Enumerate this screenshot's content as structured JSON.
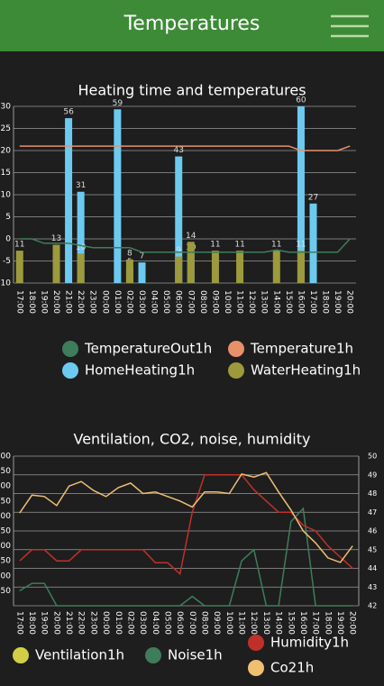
{
  "header": {
    "title": "Temperatures"
  },
  "chart_data": [
    {
      "type": "bar",
      "title": "Heating time and temperatures",
      "categories": [
        "17:00",
        "18:00",
        "19:00",
        "20:00",
        "21:00",
        "22:00",
        "23:00",
        "00:00",
        "01:00",
        "02:00",
        "03:00",
        "04:00",
        "05:00",
        "06:00",
        "07:00",
        "08:00",
        "09:00",
        "10:00",
        "11:00",
        "12:00",
        "13:00",
        "14:00",
        "15:00",
        "16:00",
        "17:00",
        "18:00",
        "19:00",
        "20:00"
      ],
      "ylim": [
        -10,
        30
      ],
      "yticks": [
        -10,
        -5,
        0,
        5,
        10,
        15,
        20,
        25,
        30
      ],
      "y2lim": [
        0,
        60
      ],
      "grid": "y",
      "data_labels": true,
      "series": [
        {
          "name": "TemperatureOut1h",
          "color": "#3e7d5c",
          "type": "line",
          "values": [
            0,
            0,
            -1,
            -1,
            -1,
            -1.5,
            -2,
            -2,
            -2,
            -2,
            -3,
            -3,
            -3,
            -3,
            -3,
            -3,
            -3,
            -3,
            -3,
            -3,
            -3,
            -2.5,
            -3,
            -3,
            -3,
            -3,
            -3,
            0
          ]
        },
        {
          "name": "Temperature1h",
          "color": "#e8906a",
          "type": "line",
          "values": [
            21,
            21,
            21,
            21,
            21,
            21,
            21,
            21,
            21,
            21,
            21,
            21,
            21,
            21,
            21,
            21,
            21,
            21,
            21,
            21,
            21,
            21,
            21,
            20,
            20,
            20,
            20,
            21
          ]
        },
        {
          "name": "HomeHeating1h",
          "color": "#6ccaf0",
          "type": "bar",
          "axis": "y2",
          "values": [
            null,
            null,
            null,
            null,
            56,
            31,
            null,
            null,
            59,
            5,
            7,
            null,
            null,
            43,
            10,
            null,
            null,
            null,
            null,
            null,
            null,
            null,
            null,
            60,
            27,
            null,
            null,
            null
          ]
        },
        {
          "name": "WaterHeating1h",
          "color": "#9c9a3c",
          "type": "bar",
          "axis": "y2",
          "values": [
            11,
            null,
            null,
            13,
            null,
            10,
            null,
            null,
            null,
            8,
            null,
            null,
            null,
            9,
            14,
            null,
            11,
            null,
            11,
            null,
            null,
            11,
            null,
            11,
            null,
            null,
            null,
            null
          ]
        }
      ]
    },
    {
      "type": "line",
      "title": "Ventilation, CO2, noise, humidity",
      "categories": [
        "17:00",
        "18:00",
        "19:00",
        "20:00",
        "21:00",
        "22:00",
        "23:00",
        "00:00",
        "01:00",
        "02:00",
        "03:00",
        "04:00",
        "05:00",
        "06:00",
        "07:00",
        "08:00",
        "09:00",
        "10:00",
        "11:00",
        "12:00",
        "13:00",
        "14:00",
        "15:00",
        "16:00",
        "17:00",
        "18:00",
        "19:00",
        "20:00"
      ],
      "ylim": [
        400,
        900
      ],
      "yticks": [
        450,
        500,
        550,
        600,
        650,
        700,
        750,
        800,
        850,
        900
      ],
      "y2lim": [
        42,
        50
      ],
      "y2ticks": [
        42,
        43,
        44,
        45,
        46,
        47,
        48,
        49,
        50
      ],
      "grid": "y2",
      "series": [
        {
          "name": "Ventilation1h",
          "color": "#d3cf45",
          "values": [
            null,
            null,
            null,
            null,
            null,
            null,
            null,
            null,
            null,
            null,
            null,
            null,
            null,
            null,
            null,
            null,
            null,
            null,
            null,
            null,
            null,
            null,
            null,
            null,
            null,
            null,
            null,
            null
          ]
        },
        {
          "name": "Noise1h",
          "color": "#3e7d5c",
          "axis": "y2",
          "values": [
            42.8,
            43.2,
            43.2,
            42,
            42,
            42,
            42,
            42,
            42,
            42,
            42,
            42,
            42,
            42,
            42.5,
            42,
            42,
            42,
            44.4,
            45,
            42,
            42,
            46.5,
            47.2,
            42,
            42,
            42,
            42
          ]
        },
        {
          "name": "Humidity1h",
          "color": "#c0302a",
          "axis": "y2",
          "values": [
            44.4,
            45,
            45,
            44.4,
            44.4,
            45,
            45,
            45,
            45,
            45,
            45,
            44.3,
            44.3,
            43.7,
            47,
            49,
            49,
            49,
            49,
            48.2,
            47.6,
            47,
            47,
            46.3,
            46,
            45.2,
            44.6,
            44
          ]
        },
        {
          "name": "Co21h",
          "color": "#efbf72",
          "values": [
            710,
            770,
            765,
            735,
            800,
            815,
            785,
            765,
            795,
            810,
            775,
            780,
            765,
            750,
            730,
            780,
            780,
            775,
            840,
            830,
            845,
            780,
            720,
            650,
            610,
            560,
            545,
            600
          ]
        }
      ]
    }
  ]
}
